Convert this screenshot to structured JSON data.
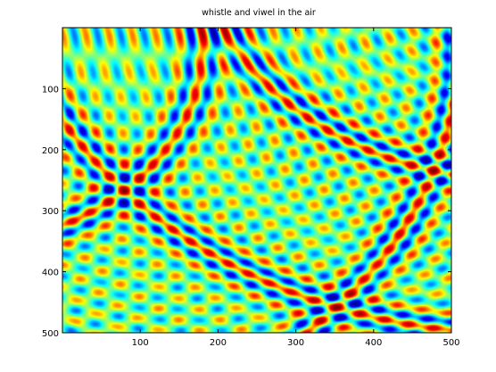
{
  "chart_data": {
    "type": "heatmap",
    "title": "whistle and viwel in the air",
    "xlabel": "",
    "ylabel": "",
    "xlim": [
      0,
      500
    ],
    "ylim": [
      500,
      0
    ],
    "y_direction": "reversed",
    "x_ticks": [
      100,
      200,
      300,
      400,
      500
    ],
    "y_ticks": [
      100,
      200,
      300,
      400,
      500
    ],
    "colormap": "jet",
    "colormap_stops": [
      "#00008f",
      "#0000ff",
      "#00ffff",
      "#ffff00",
      "#ff0000",
      "#800000"
    ],
    "value_range": [
      -1,
      1
    ],
    "grid": false,
    "legend": "none",
    "pattern": {
      "description": "concentric circular wave fronts from two point sources",
      "sources": [
        {
          "x": 590,
          "y": -170,
          "ripple_wavelength": 28,
          "bright_ring_radius": 415,
          "bright_ring_spacing": 255
        },
        {
          "x": -150,
          "y": 30,
          "ripple_wavelength": 30,
          "bright_ring_radius": 330,
          "bright_ring_spacing": 330
        }
      ]
    }
  }
}
